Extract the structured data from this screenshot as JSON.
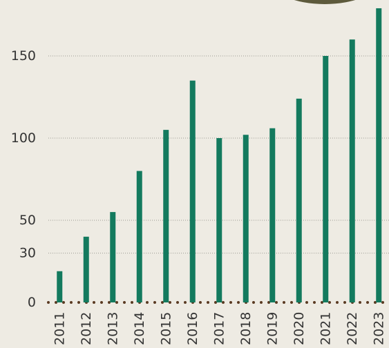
{
  "chart_data": {
    "type": "bar",
    "categories": [
      "2011",
      "2012",
      "2013",
      "2014",
      "2015",
      "2016",
      "2017",
      "2018",
      "2019",
      "2020",
      "2021",
      "2022",
      "2023"
    ],
    "values": [
      19,
      40,
      55,
      80,
      105,
      135,
      100,
      102,
      106,
      124,
      150,
      160,
      179
    ],
    "color": "#137a5e",
    "ylim": [
      0,
      180
    ],
    "yticks": [
      0,
      30,
      50,
      100,
      150
    ],
    "grid": true
  }
}
